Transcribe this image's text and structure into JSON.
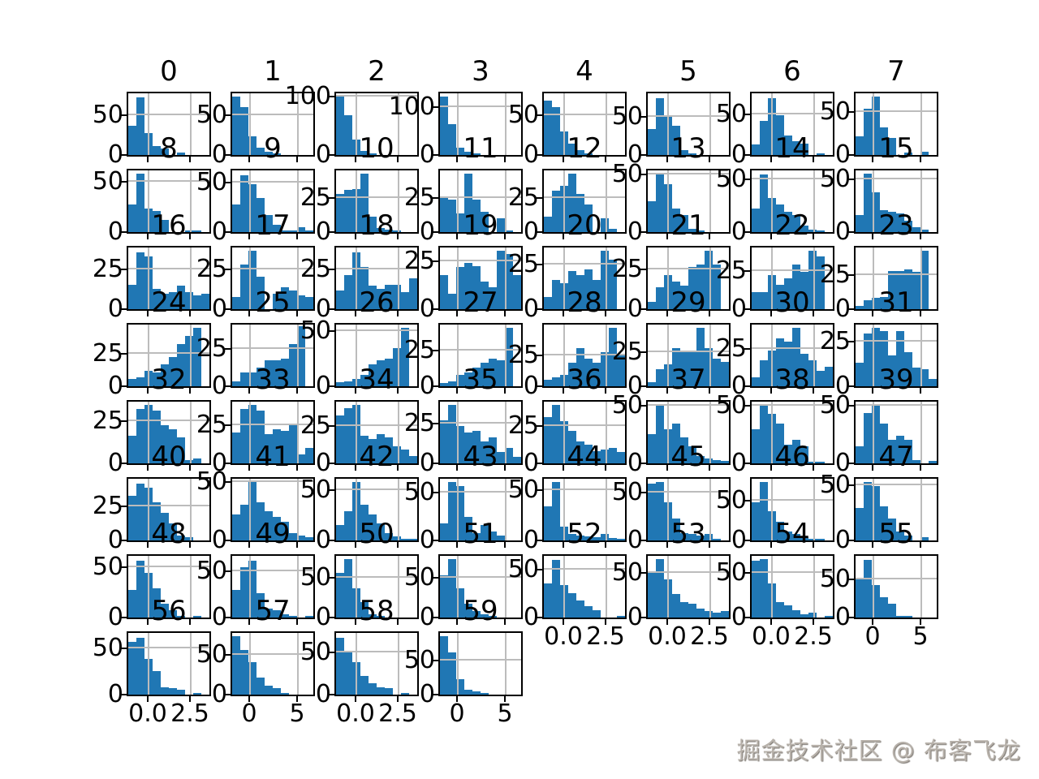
{
  "watermark": "掘金技术社区 @ 布客飞龙",
  "chart_data": {
    "type": "bar",
    "subtype": "histogram-grid",
    "title": "",
    "grid": {
      "rows": 8,
      "cols": 8,
      "total_plots": 60
    },
    "legend": "none",
    "grid_on": true,
    "x_tick_labels_by_col": [
      [
        "0.0",
        "2.5"
      ],
      [
        "0",
        "5"
      ],
      [
        "0.0",
        "2.5"
      ],
      [
        "0",
        "5"
      ],
      [
        "0.0",
        "2.5"
      ],
      [
        "0.0",
        "2.5"
      ],
      [
        "0.0",
        "2.5"
      ],
      [
        "0",
        "5"
      ]
    ],
    "note": "bars = relative bin heights (fraction of axis height); ymax = labeled y tick; yfrac = its height fraction",
    "plots": [
      {
        "title": "0",
        "ymax": "50",
        "yfrac": 0.64,
        "bars": [
          0.48,
          0.93,
          0.35,
          0.15,
          0.11,
          0,
          0.04,
          0,
          0,
          0
        ]
      },
      {
        "title": "1",
        "ymax": "50",
        "yfrac": 0.64,
        "bars": [
          0.95,
          0.78,
          0.3,
          0.12,
          0.05,
          0.03,
          0,
          0,
          0,
          0
        ]
      },
      {
        "title": "2",
        "ymax": "100",
        "yfrac": 0.95,
        "bars": [
          0.95,
          0.65,
          0.25,
          0.07,
          0.03,
          0,
          0,
          0,
          0,
          0
        ]
      },
      {
        "title": "3",
        "ymax": "100",
        "yfrac": 0.78,
        "bars": [
          0.95,
          0.5,
          0.12,
          0.05,
          0.02,
          0,
          0,
          0,
          0,
          0
        ]
      },
      {
        "title": "4",
        "ymax": "50",
        "yfrac": 0.64,
        "bars": [
          0.88,
          0.78,
          0.38,
          0.18,
          0.08,
          0.02,
          0,
          0,
          0,
          0
        ]
      },
      {
        "title": "5",
        "ymax": "50",
        "yfrac": 0.62,
        "bars": [
          0.42,
          0.92,
          0.62,
          0.48,
          0.08,
          0.03,
          0,
          0,
          0,
          0
        ]
      },
      {
        "title": "6",
        "ymax": "50",
        "yfrac": 0.66,
        "bars": [
          0.17,
          0.55,
          0.92,
          0.65,
          0.32,
          0.22,
          0.18,
          0,
          0.03,
          0
        ]
      },
      {
        "title": "7",
        "ymax": "50",
        "yfrac": 0.7,
        "bars": [
          0.3,
          0.75,
          0.95,
          0.45,
          0.28,
          0,
          0.04,
          0,
          0.05,
          0
        ]
      },
      {
        "title": "8",
        "ymax": "50",
        "yfrac": 0.81,
        "bars": [
          0.45,
          0.95,
          0.38,
          0.34,
          0.2,
          0,
          0,
          0.03,
          0.02,
          0
        ]
      },
      {
        "title": "9",
        "ymax": "50",
        "yfrac": 0.8,
        "bars": [
          0.45,
          0.92,
          0.78,
          0.55,
          0.28,
          0.12,
          0.02,
          0.02,
          0.08,
          0.02
        ]
      },
      {
        "title": "10",
        "ymax": "25",
        "yfrac": 0.55,
        "bars": [
          0.62,
          0.68,
          0.7,
          0.95,
          0.25,
          0.07,
          0.04,
          0.02,
          0,
          0
        ]
      },
      {
        "title": "11",
        "ymax": "25",
        "yfrac": 0.55,
        "bars": [
          0.55,
          0.52,
          0.3,
          0.95,
          0.52,
          0.33,
          0,
          0.22,
          0.02,
          0
        ]
      },
      {
        "title": "12",
        "ymax": "25",
        "yfrac": 0.55,
        "bars": [
          0.25,
          0.67,
          0.75,
          0.95,
          0.62,
          0.45,
          0,
          0.23,
          0.05,
          0
        ]
      },
      {
        "title": "13",
        "ymax": "50",
        "yfrac": 0.93,
        "bars": [
          0.5,
          0.95,
          0.78,
          0.38,
          0.28,
          0.05,
          0.02,
          0,
          0,
          0
        ]
      },
      {
        "title": "14",
        "ymax": "50",
        "yfrac": 0.85,
        "bars": [
          0.38,
          0.93,
          0.55,
          0.45,
          0.33,
          0.28,
          0.1,
          0.04,
          0.02,
          0
        ]
      },
      {
        "title": "15",
        "ymax": "50",
        "yfrac": 0.85,
        "bars": [
          0.28,
          0.95,
          0.65,
          0.35,
          0.33,
          0.3,
          0.18,
          0.08,
          0.04,
          0
        ]
      },
      {
        "title": "16",
        "ymax": "25",
        "yfrac": 0.64,
        "bars": [
          0.4,
          0.92,
          0.86,
          0.33,
          0.25,
          0.27,
          0.38,
          0.28,
          0.22,
          0.25
        ]
      },
      {
        "title": "17",
        "ymax": "25",
        "yfrac": 0.64,
        "bars": [
          0.2,
          0.72,
          0.95,
          0.52,
          0,
          0.25,
          0.35,
          0.3,
          0.22,
          0.2
        ]
      },
      {
        "title": "18",
        "ymax": "25",
        "yfrac": 0.64,
        "bars": [
          0.3,
          0.55,
          0.92,
          0.68,
          0.38,
          0.33,
          0.4,
          0.4,
          0.28,
          0.5
        ]
      },
      {
        "title": "19",
        "ymax": "25",
        "yfrac": 0.78,
        "bars": [
          0.55,
          0.25,
          0.68,
          0.75,
          0.7,
          0.45,
          0.35,
          0.95,
          0.9,
          0.55
        ]
      },
      {
        "title": "20",
        "ymax": "25",
        "yfrac": 0.72,
        "bars": [
          0.2,
          0.48,
          0.42,
          0.62,
          0.55,
          0.65,
          0.48,
          0.95,
          0.8,
          0
        ]
      },
      {
        "title": "21",
        "ymax": "25",
        "yfrac": 0.65,
        "bars": [
          0.12,
          0.35,
          0.55,
          0.45,
          0.38,
          0.68,
          0.72,
          0.95,
          0.72,
          0
        ]
      },
      {
        "title": "22",
        "ymax": "25",
        "yfrac": 0.62,
        "bars": [
          0.28,
          0.27,
          0.55,
          0.4,
          0.5,
          0.72,
          0.6,
          0.95,
          0.85,
          0
        ]
      },
      {
        "title": "23",
        "ymax": "25",
        "yfrac": 0.55,
        "bars": [
          0.05,
          0.15,
          0.18,
          0.2,
          0.62,
          0.62,
          0.65,
          0.6,
          0.95,
          0
        ]
      },
      {
        "title": "24",
        "ymax": "25",
        "yfrac": 0.52,
        "bars": [
          0.12,
          0.15,
          0.25,
          0.22,
          0.35,
          0.48,
          0.68,
          0.82,
          0.95,
          0
        ]
      },
      {
        "title": "25",
        "ymax": "25",
        "yfrac": 0.6,
        "bars": [
          0.08,
          0.22,
          0.22,
          0.3,
          0.42,
          0.42,
          0.45,
          0.68,
          0.97,
          0
        ]
      },
      {
        "title": "26",
        "ymax": "50",
        "yfrac": 0.9,
        "bars": [
          0.06,
          0.08,
          0.12,
          0.18,
          0.35,
          0.42,
          0.45,
          0.62,
          0.95,
          0
        ]
      },
      {
        "title": "27",
        "ymax": "25",
        "yfrac": 0.58,
        "bars": [
          0.05,
          0.08,
          0.18,
          0.22,
          0.3,
          0.38,
          0.45,
          0.42,
          0.95,
          0
        ]
      },
      {
        "title": "28",
        "ymax": "25",
        "yfrac": 0.5,
        "bars": [
          0.1,
          0.14,
          0.18,
          0.38,
          0.62,
          0.45,
          0.38,
          0.55,
          0.95,
          0.52
        ]
      },
      {
        "title": "29",
        "ymax": "25",
        "yfrac": 0.55,
        "bars": [
          0.06,
          0.28,
          0.35,
          0.62,
          0.55,
          0.58,
          0.95,
          0.62,
          0.45,
          0.4
        ]
      },
      {
        "title": "30",
        "ymax": "25",
        "yfrac": 0.6,
        "bars": [
          0.15,
          0.42,
          0.58,
          0.78,
          0.72,
          0.95,
          0.52,
          0.42,
          0.25,
          0.32
        ]
      },
      {
        "title": "31",
        "ymax": "25",
        "yfrac": 0.72,
        "bars": [
          0.38,
          0.85,
          0.95,
          0.9,
          0.5,
          0.9,
          0.55,
          0.3,
          0.28,
          0.12
        ]
      },
      {
        "title": "32",
        "ymax": "25",
        "yfrac": 0.68,
        "bars": [
          0.45,
          0.88,
          0.95,
          0.85,
          0.62,
          0.55,
          0.42,
          0.05,
          0.08,
          0
        ]
      },
      {
        "title": "33",
        "ymax": "25",
        "yfrac": 0.62,
        "bars": [
          0.5,
          0.88,
          0.95,
          0.85,
          0.48,
          0.55,
          0.52,
          0.62,
          0.15,
          0.25
        ]
      },
      {
        "title": "34",
        "ymax": "25",
        "yfrac": 0.6,
        "bars": [
          0.78,
          0.9,
          0.95,
          0.45,
          0.4,
          0.48,
          0.42,
          0.28,
          0.22,
          0.12
        ]
      },
      {
        "title": "35",
        "ymax": "25",
        "yfrac": 0.65,
        "bars": [
          0.7,
          0.95,
          0.6,
          0.5,
          0.52,
          0.35,
          0.42,
          0.18,
          0.25,
          0.1
        ]
      },
      {
        "title": "36",
        "ymax": "25",
        "yfrac": 0.6,
        "bars": [
          0.75,
          0.95,
          0.68,
          0.52,
          0.35,
          0.3,
          0.2,
          0.22,
          0.25,
          0.18
        ]
      },
      {
        "title": "37",
        "ymax": "50",
        "yfrac": 0.93,
        "bars": [
          0.48,
          0.95,
          0.55,
          0.65,
          0.42,
          0.28,
          0.12,
          0.08,
          0.05,
          0.04
        ]
      },
      {
        "title": "38",
        "ymax": "50",
        "yfrac": 0.93,
        "bars": [
          0.55,
          0.95,
          0.8,
          0.65,
          0.3,
          0.38,
          0.28,
          0.03,
          0.03,
          0
        ]
      },
      {
        "title": "39",
        "ymax": "50",
        "yfrac": 0.93,
        "bars": [
          0.28,
          0.82,
          0.95,
          0.65,
          0.38,
          0.45,
          0.38,
          0.05,
          0,
          0.04
        ]
      },
      {
        "title": "40",
        "ymax": "25",
        "yfrac": 0.55,
        "bars": [
          0.72,
          0.92,
          0.85,
          0.62,
          0.45,
          0.28,
          0.08,
          0.05,
          0,
          0
        ]
      },
      {
        "title": "41",
        "ymax": "50",
        "yfrac": 0.95,
        "bars": [
          0.42,
          0.58,
          0.95,
          0.62,
          0.48,
          0.38,
          0.3,
          0.12,
          0.08,
          0.05
        ]
      },
      {
        "title": "42",
        "ymax": "50",
        "yfrac": 0.82,
        "bars": [
          0.25,
          0.48,
          0.95,
          0.58,
          0.42,
          0.28,
          0.12,
          0.06,
          0.02,
          0.03
        ]
      },
      {
        "title": "43",
        "ymax": "50",
        "yfrac": 0.78,
        "bars": [
          0.28,
          0.95,
          0.88,
          0.38,
          0.12,
          0.25,
          0.15,
          0.08,
          0,
          0
        ]
      },
      {
        "title": "44",
        "ymax": "50",
        "yfrac": 0.82,
        "bars": [
          0.55,
          0.95,
          0.22,
          0.1,
          0.08,
          0.06,
          0.05,
          0.1,
          0.04,
          0.02
        ]
      },
      {
        "title": "45",
        "ymax": "50",
        "yfrac": 0.78,
        "bars": [
          0.92,
          0.95,
          0.62,
          0.35,
          0.12,
          0.1,
          0.08,
          0.1,
          0.03,
          0
        ]
      },
      {
        "title": "46",
        "ymax": "50",
        "yfrac": 0.64,
        "bars": [
          0.62,
          0.95,
          0.48,
          0.3,
          0.15,
          0.1,
          0.05,
          0.03,
          0.02,
          0
        ]
      },
      {
        "title": "47",
        "ymax": "50",
        "yfrac": 0.9,
        "bars": [
          0.52,
          0.95,
          0.88,
          0.55,
          0.35,
          0.15,
          0.08,
          0,
          0.05,
          0
        ]
      },
      {
        "title": "48",
        "ymax": "50",
        "yfrac": 0.81,
        "bars": [
          0.45,
          0.92,
          0.72,
          0.48,
          0.22,
          0.12,
          0.03,
          0,
          0.02,
          0
        ]
      },
      {
        "title": "49",
        "ymax": "50",
        "yfrac": 0.75,
        "bars": [
          0.45,
          0.82,
          0.92,
          0.4,
          0.15,
          0.12,
          0.05,
          0.02,
          0,
          0.03
        ]
      },
      {
        "title": "50",
        "ymax": "50",
        "yfrac": 0.65,
        "bars": [
          0.72,
          0.95,
          0.48,
          0.25,
          0.05,
          0.02,
          0,
          0,
          0,
          0
        ]
      },
      {
        "title": "51",
        "ymax": "50",
        "yfrac": 0.64,
        "bars": [
          0.68,
          0.95,
          0.48,
          0.22,
          0.1,
          0.05,
          0.02,
          0,
          0,
          0
        ]
      },
      {
        "title": "52",
        "ymax": "50",
        "yfrac": 0.78,
        "bars": [
          0.55,
          0.93,
          0.52,
          0.4,
          0.28,
          0.18,
          0.12,
          0,
          0,
          0.02
        ],
        "xlabels": [
          "0.0",
          "2.5"
        ]
      },
      {
        "title": "53",
        "ymax": "50",
        "yfrac": 0.72,
        "bars": [
          0.72,
          0.95,
          0.62,
          0.38,
          0.25,
          0.22,
          0.15,
          0.1,
          0.08,
          0.1
        ],
        "xlabels": [
          "0.0",
          "2.5"
        ]
      },
      {
        "title": "54",
        "ymax": "50",
        "yfrac": 0.72,
        "bars": [
          0.92,
          0.95,
          0.55,
          0.25,
          0.2,
          0.12,
          0.05,
          0.08,
          0,
          0.03
        ],
        "xlabels": [
          "0.0",
          "2.5"
        ]
      },
      {
        "title": "55",
        "ymax": "50",
        "yfrac": 0.62,
        "bars": [
          0.65,
          0.93,
          0.52,
          0.33,
          0.22,
          0.02,
          0.03,
          0,
          0,
          0
        ],
        "xlabels": [
          "0",
          "5"
        ]
      },
      {
        "title": "56",
        "ymax": "50",
        "yfrac": 0.75,
        "bars": [
          0.85,
          0.92,
          0.58,
          0.38,
          0.12,
          0.1,
          0.08,
          0,
          0.03,
          0
        ],
        "xlabels": [
          "0.0",
          "2.5"
        ]
      },
      {
        "title": "57",
        "ymax": "50",
        "yfrac": 0.65,
        "bars": [
          0.95,
          0.72,
          0.52,
          0.28,
          0.15,
          0.1,
          0.02,
          0,
          0,
          0
        ],
        "xlabels": [
          "0",
          "5"
        ]
      },
      {
        "title": "58",
        "ymax": "50",
        "yfrac": 0.68,
        "bars": [
          0.92,
          0.68,
          0.52,
          0.3,
          0.18,
          0.12,
          0.1,
          0,
          0.02,
          0
        ],
        "xlabels": [
          "0.0",
          "2.5"
        ]
      },
      {
        "title": "59",
        "ymax": "50",
        "yfrac": 0.55,
        "bars": [
          0.95,
          0.68,
          0.25,
          0.08,
          0.05,
          0.02,
          0,
          0,
          0,
          0
        ],
        "xlabels": [
          "0",
          "5"
        ]
      }
    ]
  }
}
